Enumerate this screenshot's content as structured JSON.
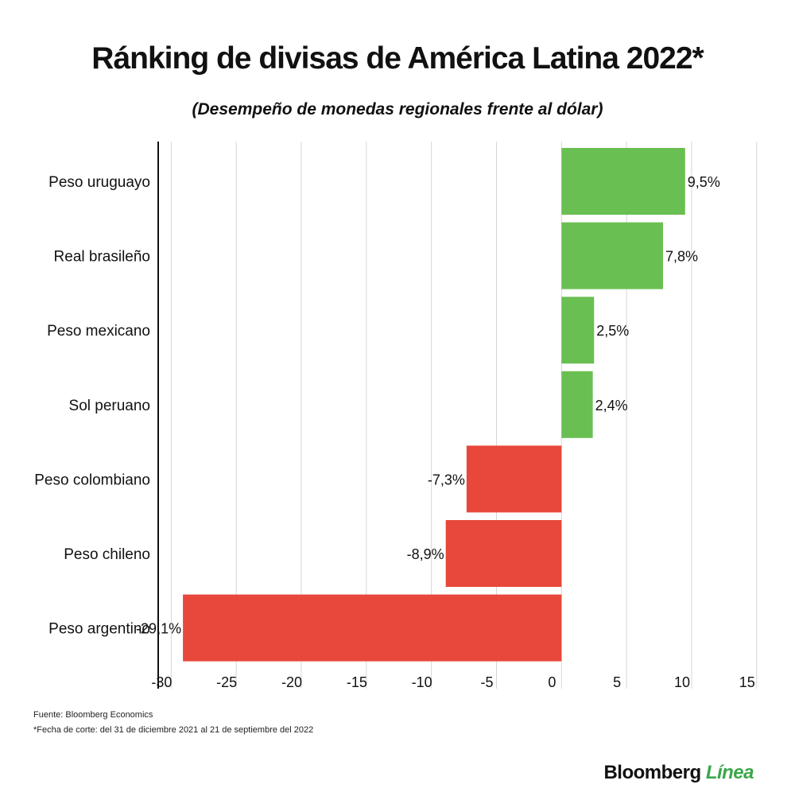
{
  "chart_data": {
    "type": "bar",
    "orientation": "horizontal",
    "title": "Ránking de divisas de América Latina 2022*",
    "subtitle": "(Desempeño de monedas regionales frente al dólar)",
    "categories": [
      "Peso uruguayo",
      "Real brasileño",
      "Peso mexicano",
      "Sol peruano",
      "Peso colombiano",
      "Peso chileno",
      "Peso argentino"
    ],
    "values": [
      9.5,
      7.8,
      2.5,
      2.4,
      -7.3,
      -8.9,
      -29.1
    ],
    "value_labels": [
      "9,5%",
      "7,8%",
      "2,5%",
      "2,4%",
      "-7,3%",
      "-8,9%",
      "-29,1%"
    ],
    "xlim": [
      -31,
      15.5
    ],
    "xticks": [
      -30,
      -25,
      -20,
      -15,
      -10,
      -5,
      0,
      5,
      10,
      15
    ],
    "xtick_labels": [
      "-30",
      "-25",
      "-20",
      "-15",
      "-10",
      "-5",
      "0",
      "5",
      "10",
      "15"
    ],
    "grid": true,
    "colors": {
      "positive": "#6abf52",
      "negative": "#e8473b",
      "grid": "#d6d6d6",
      "axis": "#111111"
    }
  },
  "footer": {
    "source": "Fuente: Bloomberg Economics",
    "note": "*Fecha de corte: del 31 de diciembre 2021 al 21 de septiembre del 2022"
  },
  "brand": {
    "name_part1": "Bloomberg",
    "name_part2": "Línea"
  }
}
